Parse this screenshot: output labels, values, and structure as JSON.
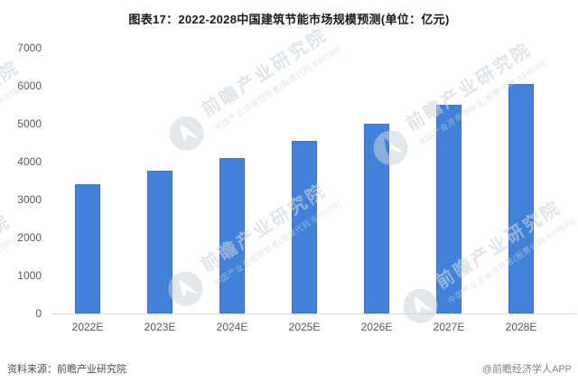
{
  "title": "图表17：2022-2028中国建筑节能市场规模预测(单位：亿元)",
  "chart_data": {
    "type": "bar",
    "title": "图表17：2022-2028中国建筑节能市场规模预测(单位：亿元)",
    "categories": [
      "2022E",
      "2023E",
      "2024E",
      "2025E",
      "2026E",
      "2027E",
      "2028E"
    ],
    "values": [
      3400,
      3750,
      4100,
      4550,
      5000,
      5500,
      6050
    ],
    "unit": "亿元",
    "xlabel": "",
    "ylabel": "",
    "ylim": [
      0,
      7000
    ],
    "yticks": [
      0,
      1000,
      2000,
      3000,
      4000,
      5000,
      6000,
      7000
    ],
    "bar_color": "#4181DB",
    "axis_color": "#d9d9d9",
    "tick_label_color": "#595959",
    "grid": "off",
    "legend": "none"
  },
  "watermark": {
    "main": "前瞻产业研究院",
    "sub": "中国产业咨询领导者(股票代码:839599)",
    "logo": "qianzhan-logo"
  },
  "footer": {
    "source": "资料来源：前瞻产业研究院",
    "credit": "@前瞻经济学人APP"
  }
}
